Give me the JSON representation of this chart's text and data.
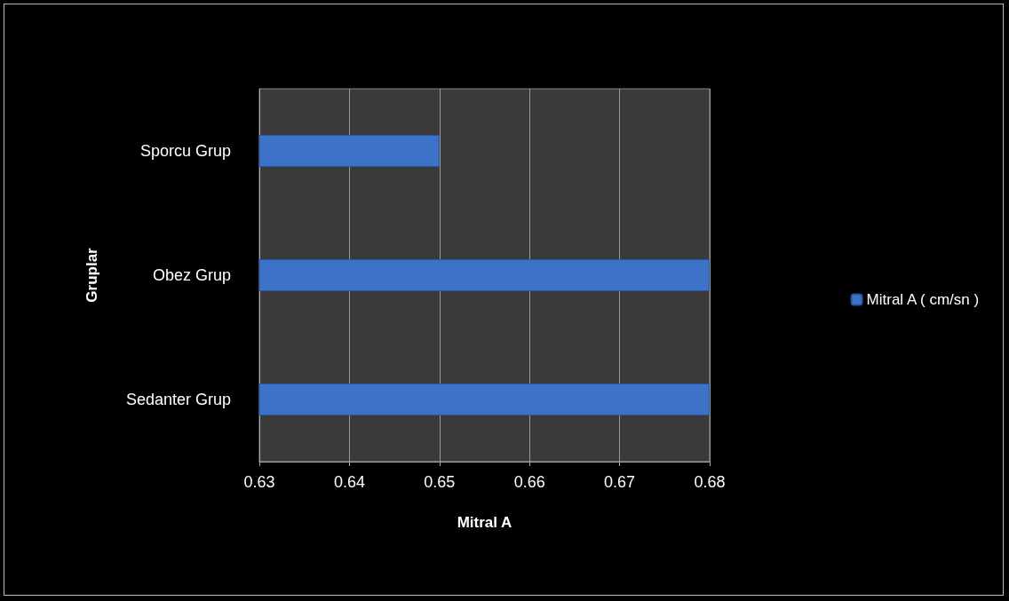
{
  "chart_data": {
    "type": "bar",
    "orientation": "horizontal",
    "categories": [
      "Sporcu Grup",
      "Obez Grup",
      "Sedanter Grup"
    ],
    "series": [
      {
        "name": "Mitral A ( cm/sn )",
        "color": "#3c72c8",
        "values": [
          0.65,
          0.68,
          0.68
        ]
      }
    ],
    "xlabel": "Mitral A",
    "ylabel": "Gruplar",
    "xlim": [
      0.63,
      0.68
    ],
    "xticks": [
      0.63,
      0.64,
      0.65,
      0.66,
      0.67,
      0.68
    ],
    "grid": "x",
    "legend": "right"
  }
}
